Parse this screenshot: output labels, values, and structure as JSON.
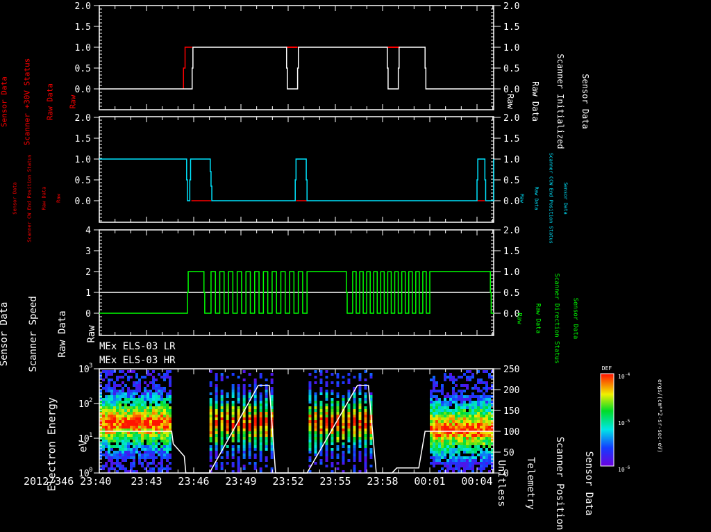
{
  "chart_data": [
    {
      "type": "line",
      "panel": 1,
      "left_axis": {
        "label_lines": [
          "Sensor Data",
          "Scanner +30V Status",
          "Raw Data",
          "Raw"
        ],
        "color": "#ff0000",
        "ylim": [
          -0.5,
          2.0
        ],
        "ticks": [
          "2.0",
          "1.5",
          "1.0",
          "0.5",
          "0.0"
        ]
      },
      "right_axis": {
        "label_lines": [
          "Sensor Data",
          "Scanner Initialized",
          "Raw Data",
          "Raw"
        ],
        "color": "#ffffff",
        "ylim": [
          -0.5,
          2.0
        ],
        "ticks": [
          "2.0",
          "1.5",
          "1.0",
          "0.5",
          "0.0"
        ]
      },
      "series": [
        {
          "name": "Scanner +30V Status",
          "color": "#ff0000",
          "x_min": [
            0,
            5.5,
            5.6,
            18.0,
            20.7,
            30.6,
            32.9
          ],
          "values": [
            0,
            1,
            1,
            1,
            1,
            1,
            1
          ]
        },
        {
          "name": "Scanner Initialized",
          "color": "#ffffff",
          "x_min": [
            0,
            5.8,
            6.0,
            11.9,
            12.1,
            14.3,
            14.5,
            18.5,
            18.7,
            20.8,
            21.0,
            25.1,
            25.3,
            33.5
          ],
          "values": [
            0,
            0,
            1,
            1,
            0,
            0,
            1,
            1,
            0,
            0,
            1,
            1,
            0,
            0
          ]
        }
      ]
    },
    {
      "type": "line",
      "panel": 2,
      "left_axis": {
        "label_lines": [
          "Sensor Data",
          "Scanner CW End Position Status",
          "Raw Data",
          "Raw"
        ],
        "color": "#ff0000",
        "ylim": [
          -0.5,
          2.0
        ],
        "ticks": [
          "2.0",
          "1.5",
          "1.0",
          "0.5",
          "0.0"
        ]
      },
      "right_axis": {
        "label_lines": [
          "Sensor Data",
          "Scanner CCW End Position Status",
          "Raw Data",
          "Raw"
        ],
        "color": "#00e5ff",
        "ylim": [
          -0.5,
          2.0
        ],
        "ticks": [
          "2.0",
          "1.5",
          "1.0",
          "0.5",
          "0.0"
        ]
      },
      "series": [
        {
          "name": "Scanner CW End Position Status",
          "color": "#ff0000",
          "x_min": [
            5.7,
            7.3,
            12.6,
            13.3,
            24.1,
            24.6
          ],
          "values": [
            0,
            0,
            0,
            0,
            0,
            0
          ]
        },
        {
          "name": "Scanner CCW End Position Status",
          "color": "#00e5ff",
          "x_min": [
            0,
            5.6,
            5.7,
            5.9,
            6.0,
            7.2,
            7.4,
            12.5,
            12.7,
            13.3,
            13.5,
            24.0,
            24.1,
            24.5,
            24.7,
            26.4,
            26.6,
            33.5
          ],
          "values": [
            1,
            1,
            0,
            0,
            1,
            1,
            0,
            0,
            1,
            1,
            0,
            0,
            1,
            1,
            0,
            0,
            1,
            1
          ]
        }
      ]
    },
    {
      "type": "line",
      "panel": 3,
      "left_axis": {
        "label_lines": [
          "Sensor Data",
          "Scanner Speed",
          "Raw Data",
          "Raw"
        ],
        "color": "#ffffff",
        "ylim": [
          -1,
          4
        ],
        "ticks": [
          "4",
          "3",
          "2",
          "1",
          "0"
        ]
      },
      "right_axis": {
        "label_lines": [
          "Sensor Data",
          "Scanner Direction Status",
          "Raw Data",
          "Raw"
        ],
        "color": "#00ff00",
        "ylim": [
          -0.5,
          2.0
        ],
        "ticks": [
          "2.0",
          "1.5",
          "1.0",
          "0.5",
          "0.0"
        ]
      },
      "series": [
        {
          "name": "Scanner Speed",
          "color": "#ffffff",
          "constant": 1
        },
        {
          "name": "Scanner Direction Status",
          "color": "#00ff00",
          "segments_min": [
            [
              0,
              5.7,
              0
            ],
            [
              5.7,
              7.0,
              1
            ],
            [
              7.0,
              7.5,
              0
            ],
            [
              7.5,
              13.9,
              "oscillating 0-1"
            ],
            [
              13.9,
              17.1,
              1
            ],
            [
              17.1,
              17.6,
              0
            ],
            [
              17.6,
              21.0,
              "oscillating 0-1"
            ],
            [
              21.0,
              24.2,
              1
            ],
            [
              24.2,
              33.5,
              0
            ]
          ]
        }
      ]
    },
    {
      "type": "heatmap",
      "panel": 4,
      "titles": [
        "MEx ELS-03 LR",
        "MEx ELS-03 HR"
      ],
      "left_axis": {
        "label_lines": [
          "Electron Energy",
          "eV"
        ],
        "scale": "log",
        "ylim": [
          1,
          1000
        ],
        "ticks": [
          "10^0",
          "10^1",
          "10^2",
          "10^3"
        ]
      },
      "right_axis": {
        "label_lines": [
          "Sensor Data",
          "Scanner Position",
          "Telemetry",
          "Unitless"
        ],
        "ylim": [
          0,
          250
        ],
        "ticks": [
          "250",
          "200",
          "150",
          "100",
          "50",
          "0"
        ]
      },
      "colorbar": {
        "title": "DEF",
        "units": "ergs/(cm**2-sr-sec-eV)",
        "ticks": [
          "10^-4",
          "10^-5",
          "10^-6"
        ],
        "colormap": "rainbow (purple→blue→cyan→green→yellow→red)"
      },
      "data_blocks_min": [
        {
          "x_range": [
            0,
            4.5
          ],
          "peak_energy_eV": 30,
          "note": "dense LR data, red band 15-60 eV"
        },
        {
          "x_range": [
            7.0,
            11.0
          ],
          "peak_energy_eV": 30,
          "note": "striped HR data"
        },
        {
          "x_range": [
            13.3,
            17.3
          ],
          "peak_energy_eV": 30,
          "note": "striped HR data"
        },
        {
          "x_range": [
            21.0,
            25.0
          ],
          "peak_energy_eV": 20,
          "note": "dense LR data"
        }
      ],
      "scanner_position_trace": {
        "color": "#ffffff",
        "x_min": [
          0,
          4.6,
          4.7,
          5.4,
          5.5,
          6.7,
          7.0,
          10.1,
          10.8,
          11.2,
          12.3,
          13.2,
          16.4,
          17.1,
          17.6,
          18.6,
          18.9,
          20.3,
          20.7,
          25.0
        ],
        "values": [
          100,
          100,
          70,
          40,
          0,
          0,
          0,
          210,
          210,
          0,
          0,
          0,
          210,
          210,
          0,
          0,
          12,
          12,
          100,
          100
        ]
      }
    }
  ],
  "x_axis": {
    "start_label": "2012/346 23:40",
    "ticks": [
      "23:40",
      "23:43",
      "23:46",
      "23:49",
      "23:52",
      "23:55",
      "23:58",
      "00:01",
      "00:04"
    ],
    "tick_minutes": [
      0,
      3,
      6,
      9,
      12,
      15,
      18,
      21,
      24
    ]
  }
}
